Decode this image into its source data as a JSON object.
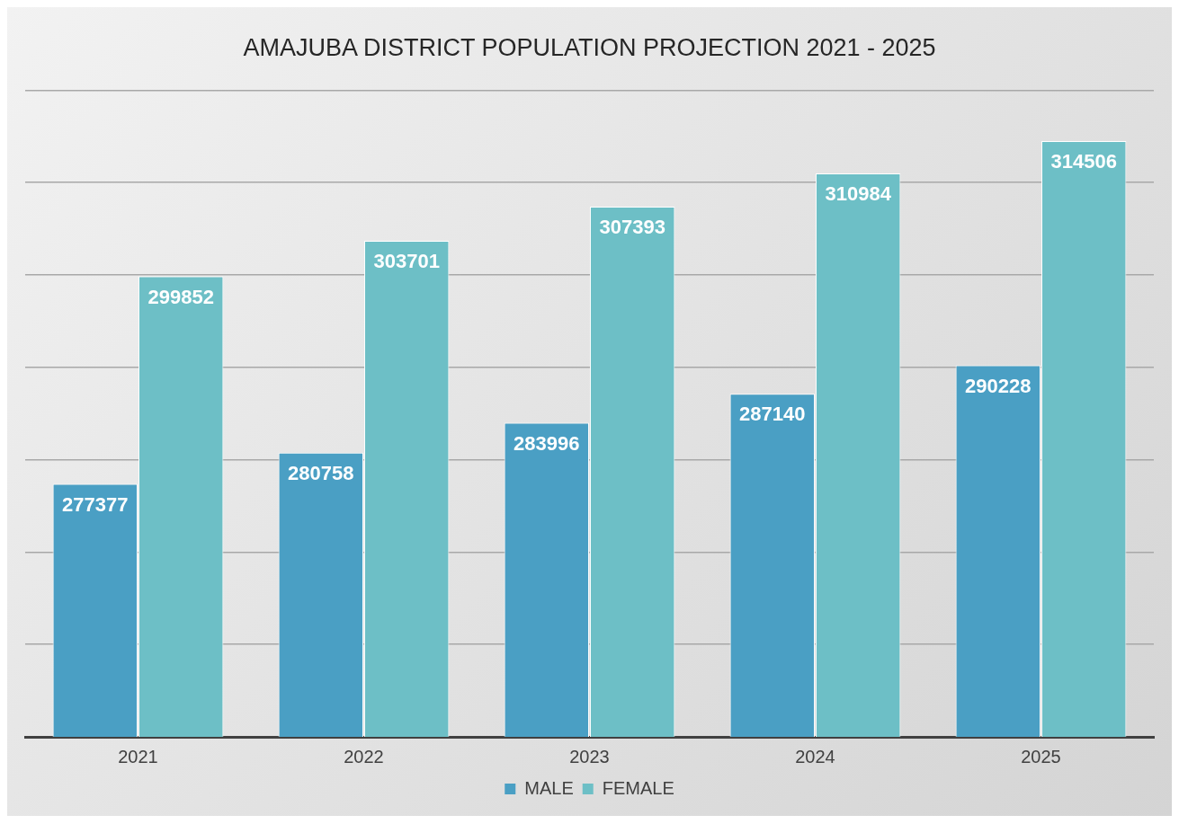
{
  "chart_data": {
    "type": "bar",
    "title": "AMAJUBA DISTRICT POPULATION PROJECTION 2021 - 2025",
    "categories": [
      "2021",
      "2022",
      "2023",
      "2024",
      "2025"
    ],
    "series": [
      {
        "name": "MALE",
        "color": "#4a9fc4",
        "values": [
          277377,
          280758,
          283996,
          287140,
          290228
        ]
      },
      {
        "name": "FEMALE",
        "color": "#6dbfc6",
        "values": [
          299852,
          303701,
          307393,
          310984,
          314506
        ]
      }
    ],
    "ylim": [
      250000,
      320000
    ],
    "yticks": [
      {
        "value": 250000,
        "label": null
      },
      {
        "value": 260000,
        "label": null
      },
      {
        "value": 270000,
        "label": null
      },
      {
        "value": 280000,
        "label": null
      },
      {
        "value": 290000,
        "label": null
      },
      {
        "value": 300000,
        "label": null
      },
      {
        "value": 310000,
        "label": null
      },
      {
        "value": 320000,
        "label": null
      }
    ],
    "tick_labels": "x",
    "grid": "y",
    "legend": "bottom",
    "data_labels": true
  }
}
